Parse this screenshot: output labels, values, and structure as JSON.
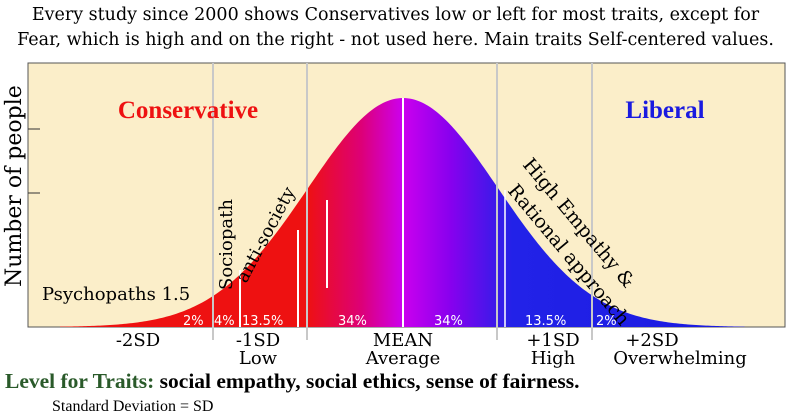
{
  "header": {
    "line1": "Every study since 2000 shows Conservatives low or left for most traits, except for",
    "line2": "Fear, which is high and on the right - not used here. Main traits Self-centered values."
  },
  "diagram": {
    "y_axis_label": "Number of people",
    "left_label": "Conservative",
    "right_label": "Liberal",
    "colors": {
      "background": "#fbeec9",
      "conservative": "#ee1111",
      "liberal": "#1a1ae0",
      "center": "#cc00ee"
    },
    "annotations": {
      "psychopaths": "Psychopaths 1.5",
      "sociopath": "Sociopath",
      "anti_society": "anti-society",
      "high_empathy": "High Empathy &",
      "rational": "Rational approach"
    },
    "percentages": [
      "2%",
      "4%",
      "13.5%",
      "34%",
      "34%",
      "13.5%",
      "2%"
    ],
    "sd_labels": [
      {
        "top": "-2SD",
        "bottom": ""
      },
      {
        "top": "-1SD",
        "bottom": "Low"
      },
      {
        "top": "MEAN",
        "bottom": "Average"
      },
      {
        "top": "+1SD",
        "bottom": "High"
      },
      {
        "top": "+2SD",
        "bottom": "Overwhelming"
      }
    ]
  },
  "footer": {
    "traits_label": "Level for Traits:",
    "traits_text": "social empathy, social ethics, sense of fairness.",
    "sd_note": "Standard Deviation = SD"
  }
}
